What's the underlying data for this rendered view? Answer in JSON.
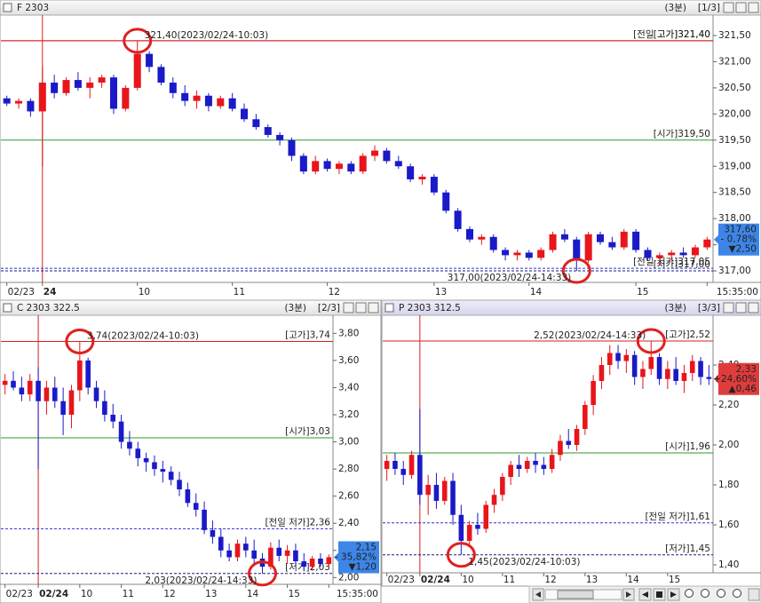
{
  "chart_data": [
    {
      "type": "candlestick",
      "title": "F 2303",
      "period": "(3분)",
      "pane": "[1/3]",
      "up_color": "#e8151b",
      "down_color": "#1a1ac8",
      "ylim": [
        316.78,
        321.84
      ],
      "yticks": [
        {
          "value": 321.5,
          "label": "321,50"
        },
        {
          "value": 321,
          "label": "321,00"
        },
        {
          "value": 320.5,
          "label": "320,50"
        },
        {
          "value": 320,
          "label": "320,00"
        },
        {
          "value": 319.5,
          "label": "319,50"
        },
        {
          "value": 319,
          "label": "319,00"
        },
        {
          "value": 318.5,
          "label": "318,50"
        },
        {
          "value": 318,
          "label": "318,00"
        },
        {
          "value": 317.5,
          "label": "317,50"
        },
        {
          "value": 317,
          "label": "317,00"
        }
      ],
      "xticks": [
        {
          "value": 0,
          "label": "02/23"
        },
        {
          "value": 3,
          "label": "24"
        },
        {
          "value": 11,
          "label": "10"
        },
        {
          "value": 19,
          "label": "11"
        },
        {
          "value": 27,
          "label": "12"
        },
        {
          "value": 36,
          "label": "13"
        },
        {
          "value": 44,
          "label": "14"
        },
        {
          "value": 53,
          "label": "15"
        },
        {
          "value": 59,
          "label": "15:35:00"
        }
      ],
      "open": [
        320.3,
        320.2,
        320.25,
        320.05,
        320.6,
        320.4,
        320.65,
        320.5,
        320.6,
        320.7,
        320.1,
        320.5,
        321.15,
        320.9,
        320.6,
        320.4,
        320.25,
        320.35,
        320.15,
        320.3,
        320.1,
        319.9,
        319.75,
        319.6,
        319.5,
        319.2,
        318.9,
        319.1,
        318.95,
        319.05,
        318.9,
        319.2,
        319.3,
        319.1,
        319,
        318.75,
        318.8,
        318.5,
        318.15,
        317.8,
        317.6,
        317.65,
        317.4,
        317.3,
        317.35,
        317.25,
        317.4,
        317.7,
        317.6,
        317.2,
        317.7,
        317.55,
        317.45,
        317.75,
        317.4,
        317.25,
        317.3,
        317.35,
        317.3,
        317.45
      ],
      "high": [
        320.35,
        320.3,
        320.3,
        320.9,
        320.75,
        320.7,
        320.8,
        320.7,
        320.75,
        320.75,
        320.55,
        321.4,
        321.2,
        320.95,
        320.7,
        320.55,
        320.45,
        320.4,
        320.35,
        320.4,
        320.2,
        320,
        319.8,
        319.65,
        319.55,
        319.25,
        319.2,
        319.15,
        319.1,
        319.1,
        319.25,
        319.4,
        319.35,
        319.2,
        319.05,
        318.85,
        318.85,
        318.55,
        318.2,
        317.85,
        317.7,
        317.7,
        317.45,
        317.4,
        317.4,
        317.45,
        317.75,
        317.8,
        317.65,
        317.75,
        317.75,
        317.65,
        317.8,
        317.8,
        317.45,
        317.35,
        317.4,
        317.45,
        317.5,
        317.65
      ],
      "low": [
        320.15,
        320.1,
        319.95,
        319,
        320.3,
        320.35,
        320.45,
        320.3,
        320.5,
        320,
        320.05,
        320.45,
        320.8,
        320.55,
        320.3,
        320.15,
        320.1,
        320.05,
        320.1,
        320.05,
        319.85,
        319.7,
        319.55,
        319.4,
        319.1,
        318.85,
        318.85,
        318.9,
        318.85,
        318.85,
        318.85,
        319.1,
        319.05,
        318.95,
        318.7,
        318.65,
        318.45,
        318.1,
        317.75,
        317.55,
        317.5,
        317.35,
        317.2,
        317.2,
        317.2,
        317.2,
        317.35,
        317.55,
        317,
        317.15,
        317.5,
        317.4,
        317.4,
        317.35,
        317.2,
        317.1,
        317.2,
        317.25,
        317.25,
        317.4
      ],
      "close": [
        320.2,
        320.25,
        320.05,
        320.6,
        320.4,
        320.65,
        320.5,
        320.6,
        320.7,
        320.1,
        320.5,
        321.15,
        320.9,
        320.6,
        320.4,
        320.25,
        320.35,
        320.15,
        320.3,
        320.1,
        319.9,
        319.75,
        319.6,
        319.5,
        319.2,
        318.9,
        319.1,
        318.95,
        319.05,
        318.9,
        319.2,
        319.3,
        319.1,
        319,
        318.75,
        318.8,
        318.5,
        318.15,
        317.8,
        317.6,
        317.65,
        317.4,
        317.3,
        317.35,
        317.25,
        317.4,
        317.7,
        317.6,
        317.2,
        317.7,
        317.55,
        317.45,
        317.75,
        317.4,
        317.25,
        317.3,
        317.35,
        317.3,
        317.45,
        317.6
      ],
      "levels": [
        {
          "label": "[고가]321,40",
          "value": 321.4,
          "color": "#d42020",
          "dashed": false
        },
        {
          "label": "[전일 고가]321,40",
          "value": 321.4,
          "color": "#d42020",
          "dashed": false
        },
        {
          "label": "[시가]319,50",
          "value": 319.5,
          "color": "#2e9a2e",
          "dashed": false
        },
        {
          "label": "[저가]317,00",
          "value": 317,
          "color": "#1a1a80",
          "dashed": true
        },
        {
          "label": "[전일 저가]317,05",
          "value": 317.05,
          "color": "#3030d0",
          "dashed": true
        }
      ],
      "notes": [
        {
          "x": 11,
          "value": 321.4,
          "label": "321,40(2023/02/24-10:03)"
        },
        {
          "x": 48,
          "value": 317,
          "label": "317,00(2023/02/24-14:33)"
        }
      ],
      "last": {
        "value": 317.6,
        "label": "317,60"
      },
      "change_pct": "- 0,78%",
      "change": "▼2,50",
      "box_color": "#3d86e8"
    },
    {
      "type": "candlestick",
      "title": "C 2303 322.5",
      "period": "(3분)",
      "pane": "[2/3]",
      "up_color": "#e8151b",
      "down_color": "#1a1ac8",
      "ylim": [
        1.95,
        3.92
      ],
      "yticks": [
        {
          "value": 3.8,
          "label": "3,80"
        },
        {
          "value": 3.6,
          "label": "3,60"
        },
        {
          "value": 3.4,
          "label": "3,40"
        },
        {
          "value": 3.2,
          "label": "3,20"
        },
        {
          "value": 3,
          "label": "3,00"
        },
        {
          "value": 2.8,
          "label": "2,80"
        },
        {
          "value": 2.6,
          "label": "2,60"
        },
        {
          "value": 2.4,
          "label": "2,40"
        },
        {
          "value": 2.2,
          "label": "2,20"
        },
        {
          "value": 2,
          "label": "2,00"
        }
      ],
      "xticks": [
        {
          "value": 0,
          "label": "02/23"
        },
        {
          "value": 4,
          "label": "02/24"
        },
        {
          "value": 9,
          "label": "10"
        },
        {
          "value": 14,
          "label": "11"
        },
        {
          "value": 19,
          "label": "12"
        },
        {
          "value": 24,
          "label": "13"
        },
        {
          "value": 29,
          "label": "14"
        },
        {
          "value": 34,
          "label": "15"
        },
        {
          "value": 39,
          "label": "15:35:00"
        }
      ],
      "open": [
        3.42,
        3.45,
        3.4,
        3.35,
        3.45,
        3.3,
        3.4,
        3.3,
        3.2,
        3.38,
        3.6,
        3.4,
        3.3,
        3.2,
        3.15,
        3,
        2.95,
        2.88,
        2.85,
        2.8,
        2.78,
        2.72,
        2.65,
        2.55,
        2.5,
        2.35,
        2.3,
        2.2,
        2.15,
        2.25,
        2.2,
        2.14,
        2.08,
        2.22,
        2.16,
        2.2,
        2.12,
        2.08,
        2.14,
        2.1
      ],
      "high": [
        3.5,
        3.52,
        3.48,
        3.5,
        3.55,
        3.45,
        3.48,
        3.4,
        3.42,
        3.74,
        3.62,
        3.45,
        3.38,
        3.28,
        3.2,
        3.08,
        3,
        2.92,
        2.9,
        2.86,
        2.82,
        2.78,
        2.7,
        2.62,
        2.56,
        2.42,
        2.36,
        2.25,
        2.28,
        2.3,
        2.28,
        2.18,
        2.26,
        2.28,
        2.24,
        2.25,
        2.18,
        2.16,
        2.18,
        2.17
      ],
      "low": [
        3.35,
        3.38,
        3.3,
        3.3,
        2.8,
        3.2,
        3.25,
        3.05,
        3.1,
        3.3,
        3.35,
        3.25,
        3.15,
        3.1,
        2.95,
        2.9,
        2.82,
        2.78,
        2.75,
        2.7,
        2.68,
        2.6,
        2.52,
        2.45,
        2.32,
        2.25,
        2.15,
        2.12,
        2.12,
        2.15,
        2.1,
        2.03,
        2.06,
        2.12,
        2.1,
        2.08,
        2.05,
        2.05,
        2.08,
        2.08
      ],
      "close": [
        3.45,
        3.4,
        3.35,
        3.45,
        3.3,
        3.4,
        3.3,
        3.2,
        3.38,
        3.6,
        3.4,
        3.3,
        3.2,
        3.15,
        3,
        2.95,
        2.88,
        2.85,
        2.8,
        2.78,
        2.72,
        2.65,
        2.55,
        2.5,
        2.35,
        2.3,
        2.2,
        2.15,
        2.25,
        2.2,
        2.14,
        2.08,
        2.22,
        2.16,
        2.2,
        2.12,
        2.08,
        2.14,
        2.1,
        2.15
      ],
      "levels": [
        {
          "label": "[고가]3,74",
          "value": 3.74,
          "color": "#d42020",
          "dashed": false
        },
        {
          "label": "[시가]3,03",
          "value": 3.03,
          "color": "#2e9a2e",
          "dashed": false
        },
        {
          "label": "[전일 저가]2,36",
          "value": 2.36,
          "color": "#3030d0",
          "dashed": true
        },
        {
          "label": "[저가]2,03",
          "value": 2.03,
          "color": "#1a1a80",
          "dashed": true
        }
      ],
      "notes": [
        {
          "x": 9,
          "value": 3.74,
          "label": "3,74(2023/02/24-10:03)"
        },
        {
          "x": 31,
          "value": 2.03,
          "label": "2,03(2023/02/24-14:33)"
        }
      ],
      "last": {
        "value": 2.15,
        "label": "2,15"
      },
      "change_pct": "- 35,82%",
      "change": "▼1,20",
      "box_color": "#3d86e8"
    },
    {
      "type": "candlestick",
      "title": "P 2303 312.5",
      "period": "(3분)",
      "pane": "[3/3]",
      "up_color": "#e8151b",
      "down_color": "#1a1ac8",
      "ylim": [
        1.36,
        2.64
      ],
      "yticks": [
        {
          "value": 2.4,
          "label": "2,40"
        },
        {
          "value": 2.2,
          "label": "2,20"
        },
        {
          "value": 2,
          "label": "2,00"
        },
        {
          "value": 1.8,
          "label": "1,80"
        },
        {
          "value": 1.6,
          "label": "1,60"
        },
        {
          "value": 1.4,
          "label": "1,40"
        }
      ],
      "xticks": [
        {
          "value": 0,
          "label": "02/23"
        },
        {
          "value": 4,
          "label": "02/24"
        },
        {
          "value": 9,
          "label": "10"
        },
        {
          "value": 14,
          "label": "11"
        },
        {
          "value": 19,
          "label": "12"
        },
        {
          "value": 24,
          "label": "13"
        },
        {
          "value": 29,
          "label": "14"
        },
        {
          "value": 34,
          "label": "15"
        }
      ],
      "open": [
        1.88,
        1.92,
        1.88,
        1.85,
        1.95,
        1.75,
        1.8,
        1.72,
        1.82,
        1.65,
        1.52,
        1.6,
        1.58,
        1.7,
        1.75,
        1.84,
        1.9,
        1.88,
        1.92,
        1.9,
        1.88,
        1.95,
        2.02,
        2,
        2.08,
        2.2,
        2.32,
        2.4,
        2.46,
        2.42,
        2.45,
        2.34,
        2.38,
        2.44,
        2.33,
        2.38,
        2.32,
        2.36,
        2.42,
        2.34
      ],
      "high": [
        1.95,
        1.96,
        1.92,
        1.97,
        2.18,
        1.85,
        1.86,
        1.84,
        1.86,
        1.7,
        1.62,
        1.66,
        1.72,
        1.78,
        1.86,
        1.92,
        1.95,
        1.94,
        1.96,
        1.94,
        1.98,
        2.05,
        2.08,
        2.1,
        2.22,
        2.35,
        2.44,
        2.5,
        2.5,
        2.48,
        2.47,
        2.42,
        2.52,
        2.46,
        2.42,
        2.44,
        2.4,
        2.45,
        2.44,
        2.4
      ],
      "low": [
        1.82,
        1.85,
        1.8,
        1.83,
        1.7,
        1.65,
        1.68,
        1.7,
        1.6,
        1.45,
        1.5,
        1.55,
        1.56,
        1.66,
        1.72,
        1.8,
        1.84,
        1.86,
        1.86,
        1.85,
        1.86,
        1.92,
        1.98,
        1.97,
        2.05,
        2.15,
        2.28,
        2.35,
        2.38,
        2.36,
        2.3,
        2.28,
        2.35,
        2.3,
        2.28,
        2.3,
        2.26,
        2.32,
        2.3,
        2.3
      ],
      "close": [
        1.92,
        1.88,
        1.85,
        1.95,
        1.75,
        1.8,
        1.72,
        1.82,
        1.65,
        1.52,
        1.6,
        1.58,
        1.7,
        1.75,
        1.84,
        1.9,
        1.88,
        1.92,
        1.9,
        1.88,
        1.95,
        2.02,
        2,
        2.08,
        2.2,
        2.32,
        2.4,
        2.46,
        2.42,
        2.45,
        2.34,
        2.38,
        2.44,
        2.33,
        2.38,
        2.32,
        2.36,
        2.42,
        2.34,
        2.33
      ],
      "levels": [
        {
          "label": "[고가]2,52",
          "value": 2.52,
          "color": "#d42020",
          "dashed": false
        },
        {
          "label": "[시가]1,96",
          "value": 1.96,
          "color": "#2e9a2e",
          "dashed": false
        },
        {
          "label": "[전일 저가]1,61",
          "value": 1.61,
          "color": "#3030d0",
          "dashed": true
        },
        {
          "label": "[저가]1,45",
          "value": 1.45,
          "color": "#1a1a80",
          "dashed": true
        }
      ],
      "notes": [
        {
          "x": 32,
          "value": 2.52,
          "label": "2,52(2023/02/24-14:33)"
        },
        {
          "x": 9,
          "value": 1.45,
          "label": "1,45(2023/02/24-10:03)"
        }
      ],
      "last": {
        "value": 2.33,
        "label": "2,33"
      },
      "change_pct": "+24,60%",
      "change": "▲0,46",
      "box_color": "#e03c3c"
    }
  ]
}
